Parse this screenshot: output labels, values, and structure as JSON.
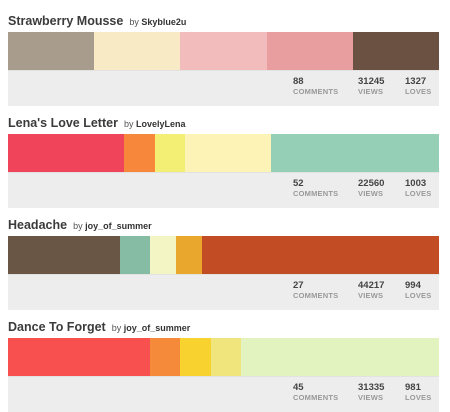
{
  "by_label": "by",
  "stat_labels": {
    "comments": "COMMENTS",
    "views": "VIEWS",
    "loves": "LOVES"
  },
  "palettes": [
    {
      "title": "Strawberry Mousse",
      "author": "Skyblue2u",
      "comments": "88",
      "views": "31245",
      "loves": "1327",
      "colors": [
        "#a89c8c",
        "#f7eac4",
        "#f1bcbb",
        "#e89d9e",
        "#6a5142"
      ],
      "widths": [
        20,
        20,
        20,
        20,
        20
      ]
    },
    {
      "title": "Lena's Love Letter",
      "author": "LovelyLena",
      "comments": "52",
      "views": "22560",
      "loves": "1003",
      "colors": [
        "#ef4459",
        "#f7873a",
        "#f3ef75",
        "#fdf3b6",
        "#95cfb5"
      ],
      "widths": [
        27,
        7,
        7,
        20,
        39
      ]
    },
    {
      "title": "Headache",
      "author": "joy_of_summer",
      "comments": "27",
      "views": "44217",
      "loves": "994",
      "colors": [
        "#6a5645",
        "#86bca3",
        "#f4f5c5",
        "#e9a72e",
        "#c24d25"
      ],
      "widths": [
        26,
        7,
        6,
        6,
        55
      ]
    },
    {
      "title": "Dance To Forget",
      "author": "joy_of_summer",
      "comments": "45",
      "views": "31335",
      "loves": "981",
      "colors": [
        "#f8504f",
        "#f58a3b",
        "#f8d22e",
        "#efe57c",
        "#e2f3bf"
      ],
      "widths": [
        33,
        7,
        7,
        7,
        46
      ]
    }
  ]
}
